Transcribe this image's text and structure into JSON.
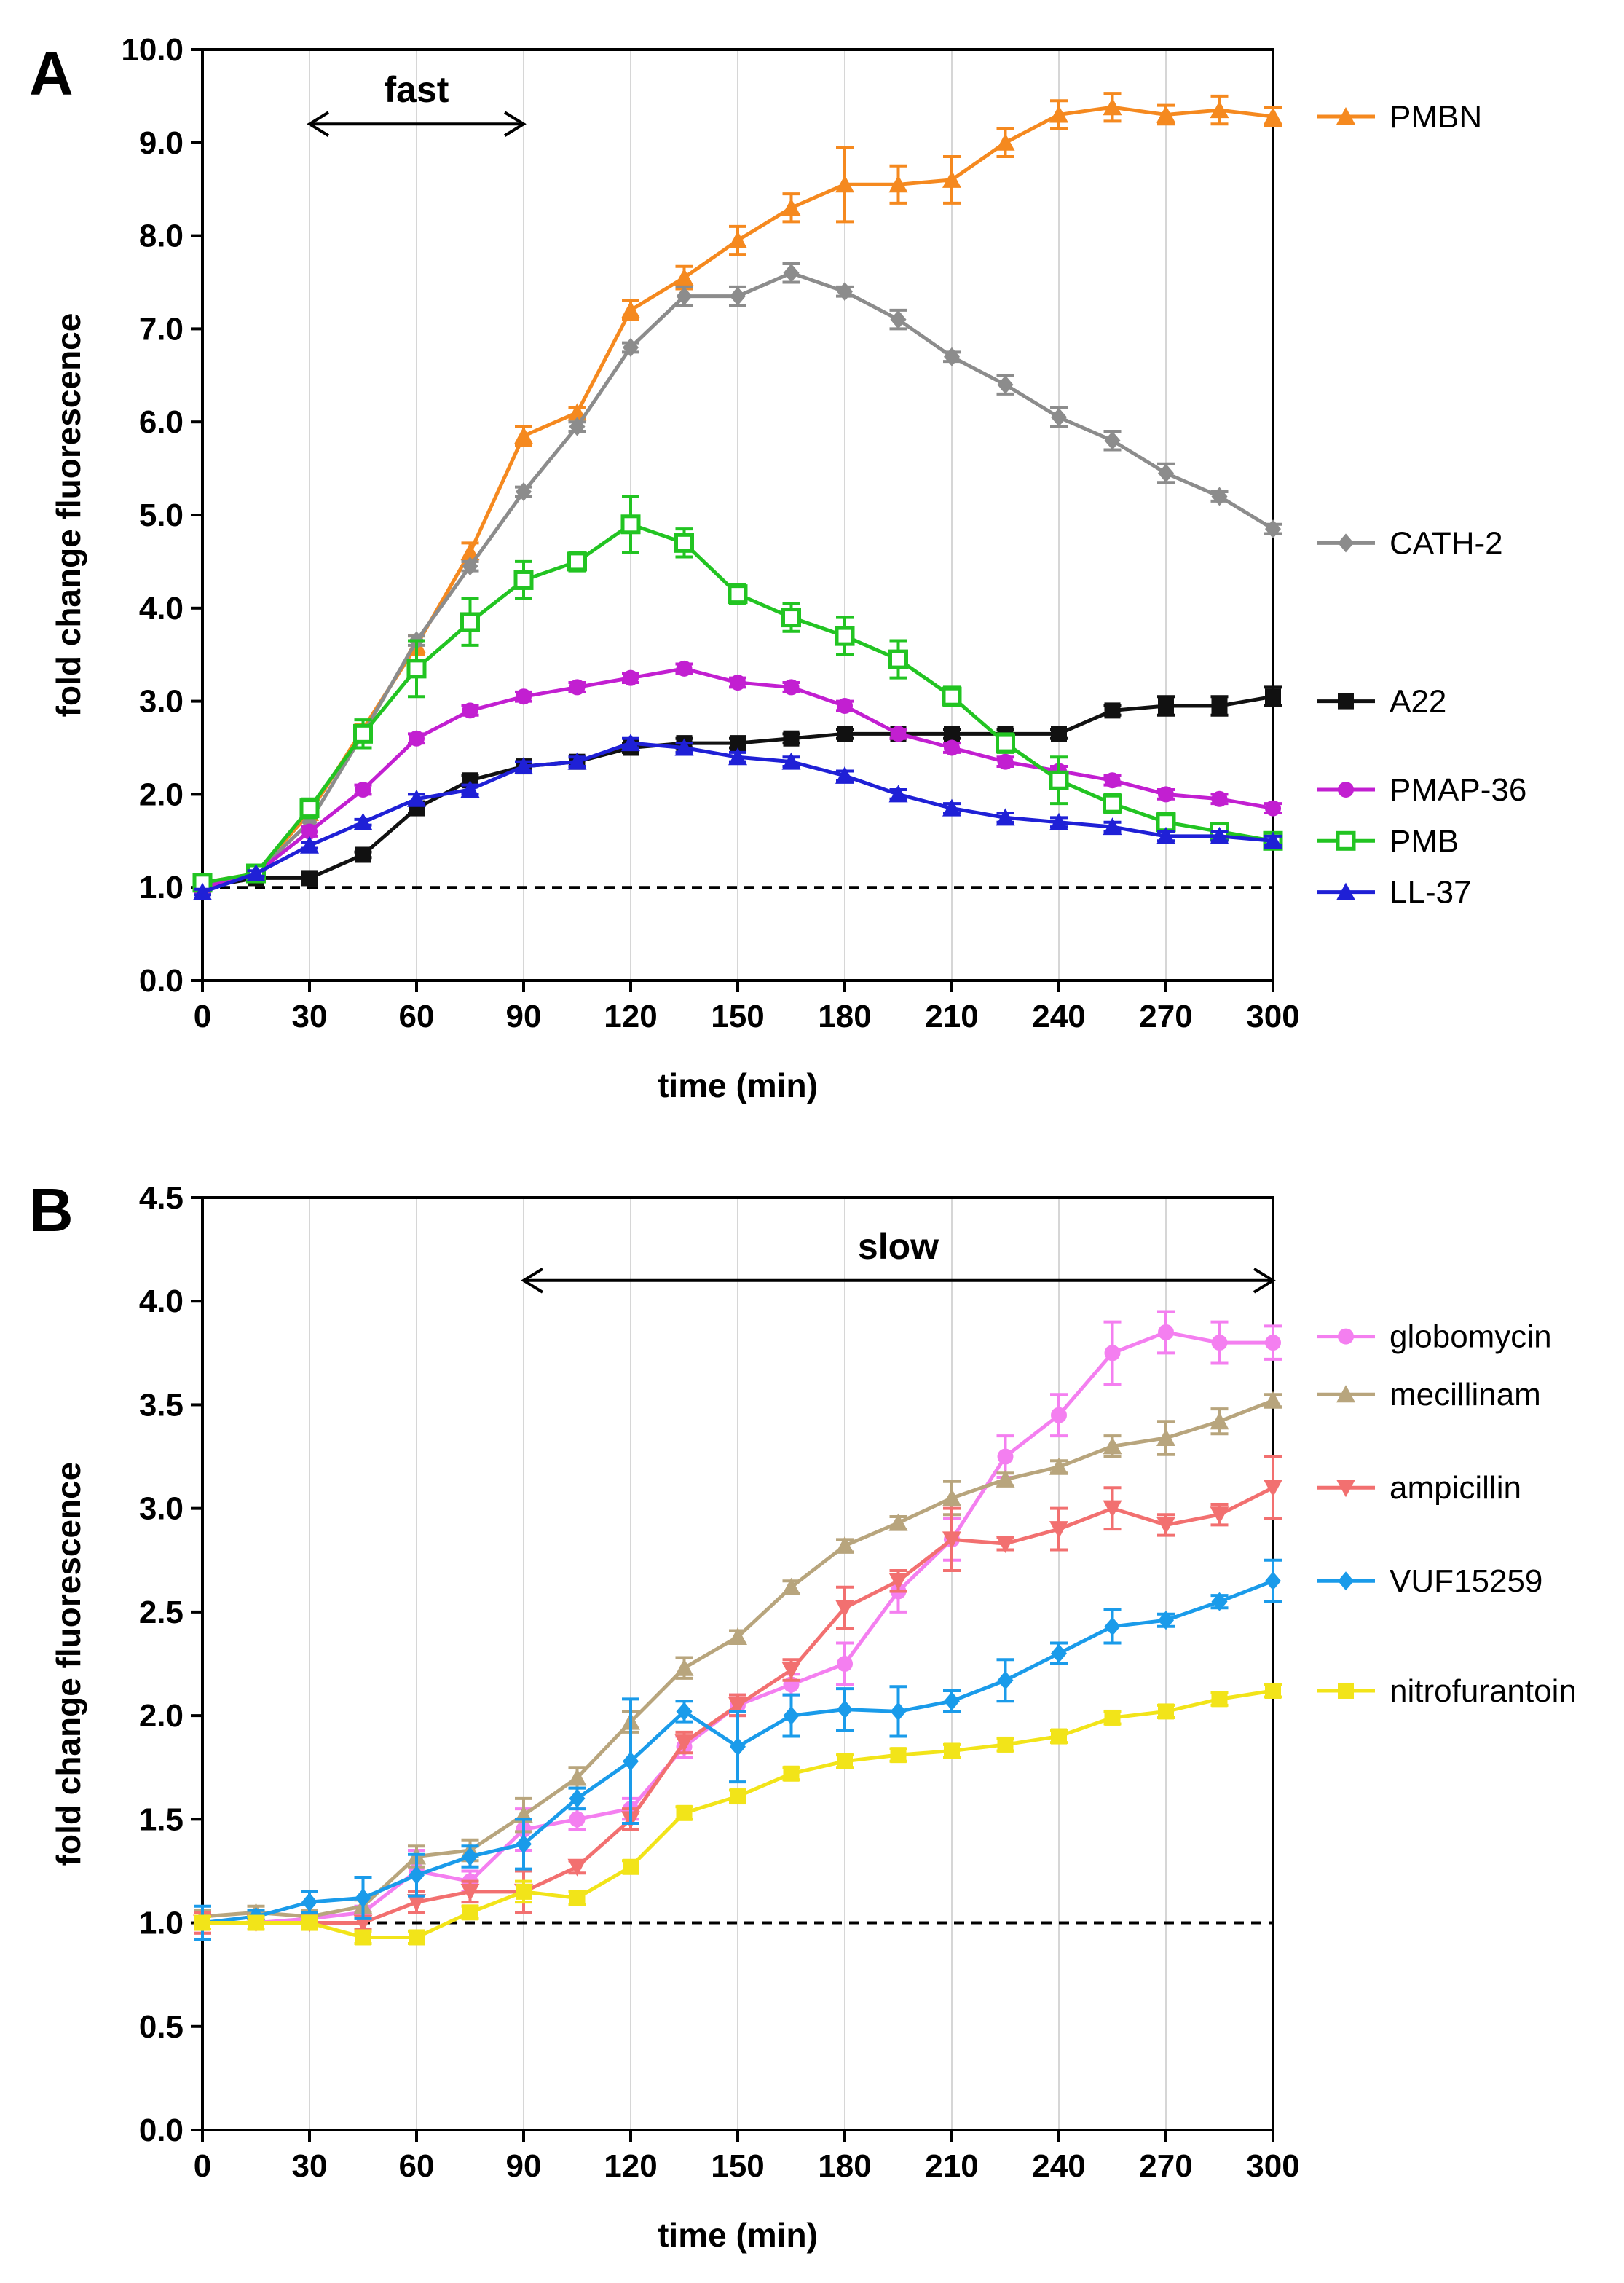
{
  "chart_data": [
    {
      "panel": "A",
      "type": "line",
      "xlabel": "time (min)",
      "ylabel": "fold change fluorescence",
      "xlim": [
        0,
        300
      ],
      "ylim": [
        0,
        10
      ],
      "xticks": [
        "0",
        "30",
        "60",
        "90",
        "120",
        "150",
        "180",
        "210",
        "240",
        "270",
        "300"
      ],
      "yticks": [
        "0.0",
        "1.0",
        "2.0",
        "3.0",
        "4.0",
        "5.0",
        "6.0",
        "7.0",
        "8.0",
        "9.0",
        "10.0"
      ],
      "grid": "vertical",
      "baseline": 1.0,
      "annotation": {
        "text": "fast",
        "from": 30,
        "to": 90,
        "y": 9.2
      },
      "x": [
        0,
        15,
        30,
        45,
        60,
        75,
        90,
        105,
        120,
        135,
        150,
        165,
        180,
        195,
        210,
        225,
        240,
        255,
        270,
        285,
        300
      ],
      "series": [
        {
          "name": "PMBN",
          "color": "#f5891f",
          "marker": "triangle-up",
          "values": [
            1.05,
            1.15,
            1.8,
            2.7,
            3.6,
            4.6,
            5.85,
            6.1,
            7.2,
            7.55,
            7.95,
            8.3,
            8.55,
            8.55,
            8.6,
            9.0,
            9.3,
            9.38,
            9.3,
            9.35,
            9.28
          ],
          "errors": [
            0.05,
            0.05,
            0.05,
            0.05,
            0.1,
            0.1,
            0.1,
            0.05,
            0.1,
            0.12,
            0.15,
            0.15,
            0.4,
            0.2,
            0.25,
            0.15,
            0.15,
            0.15,
            0.1,
            0.15,
            0.1
          ]
        },
        {
          "name": "CATH-2",
          "color": "#8c8c8c",
          "marker": "diamond",
          "values": [
            1.0,
            1.15,
            1.7,
            2.65,
            3.65,
            4.45,
            5.25,
            5.95,
            6.8,
            7.35,
            7.35,
            7.6,
            7.4,
            7.1,
            6.7,
            6.4,
            6.05,
            5.8,
            5.45,
            5.2,
            4.85
          ],
          "errors": [
            0.05,
            0.05,
            0.05,
            0.05,
            0.05,
            0.05,
            0.05,
            0.05,
            0.05,
            0.1,
            0.1,
            0.1,
            0.05,
            0.1,
            0.05,
            0.1,
            0.1,
            0.1,
            0.1,
            0.05,
            0.05
          ],
          "label_y": 4.7
        },
        {
          "name": "A22",
          "color": "#111111",
          "marker": "square",
          "values": [
            1.0,
            1.1,
            1.1,
            1.35,
            1.85,
            2.15,
            2.3,
            2.35,
            2.5,
            2.55,
            2.55,
            2.6,
            2.65,
            2.65,
            2.65,
            2.65,
            2.65,
            2.9,
            2.95,
            2.95,
            3.05
          ],
          "errors": [
            0.05,
            0.03,
            0.03,
            0.03,
            0.05,
            0.05,
            0.05,
            0.05,
            0.05,
            0.05,
            0.05,
            0.05,
            0.05,
            0.05,
            0.05,
            0.05,
            0.05,
            0.05,
            0.1,
            0.1,
            0.1
          ],
          "label_y": 3.0
        },
        {
          "name": "PMAP-36",
          "color": "#c21fd1",
          "marker": "circle",
          "values": [
            1.0,
            1.15,
            1.6,
            2.05,
            2.6,
            2.9,
            3.05,
            3.15,
            3.25,
            3.35,
            3.2,
            3.15,
            2.95,
            2.65,
            2.5,
            2.35,
            2.25,
            2.15,
            2.0,
            1.95,
            1.85
          ],
          "errors": [
            0.05,
            0.03,
            0.05,
            0.05,
            0.05,
            0.05,
            0.05,
            0.05,
            0.05,
            0.05,
            0.05,
            0.05,
            0.05,
            0.05,
            0.05,
            0.05,
            0.05,
            0.05,
            0.05,
            0.05,
            0.05
          ],
          "label_y": 2.05
        },
        {
          "name": "PMB",
          "color": "#22c422",
          "marker": "square-open",
          "values": [
            1.05,
            1.15,
            1.85,
            2.65,
            3.35,
            3.85,
            4.3,
            4.5,
            4.9,
            4.7,
            4.15,
            3.9,
            3.7,
            3.45,
            3.05,
            2.55,
            2.15,
            1.9,
            1.7,
            1.6,
            1.5
          ],
          "errors": [
            0.05,
            0.05,
            0.1,
            0.15,
            0.3,
            0.25,
            0.2,
            0.1,
            0.3,
            0.15,
            0.1,
            0.15,
            0.2,
            0.2,
            0.1,
            0.1,
            0.25,
            0.1,
            0.1,
            0.05,
            0.05
          ],
          "label_y": 1.5
        },
        {
          "name": "LL-37",
          "color": "#1f20d6",
          "marker": "triangle-up",
          "values": [
            0.95,
            1.15,
            1.45,
            1.7,
            1.95,
            2.05,
            2.3,
            2.35,
            2.55,
            2.5,
            2.4,
            2.35,
            2.2,
            2.0,
            1.85,
            1.75,
            1.7,
            1.65,
            1.55,
            1.55,
            1.5
          ],
          "errors": [
            0.03,
            0.03,
            0.03,
            0.03,
            0.05,
            0.05,
            0.05,
            0.05,
            0.05,
            0.05,
            0.05,
            0.05,
            0.05,
            0.05,
            0.05,
            0.05,
            0.05,
            0.05,
            0.05,
            0.05,
            0.05
          ],
          "label_y": 0.95
        }
      ]
    },
    {
      "panel": "B",
      "type": "line",
      "xlabel": "time (min)",
      "ylabel": "fold change fluorescence",
      "xlim": [
        0,
        300
      ],
      "ylim": [
        0,
        4.5
      ],
      "xticks": [
        "0",
        "30",
        "60",
        "90",
        "120",
        "150",
        "180",
        "210",
        "240",
        "270",
        "300"
      ],
      "yticks": [
        "0.0",
        "0.5",
        "1.0",
        "1.5",
        "2.0",
        "2.5",
        "3.0",
        "3.5",
        "4.0",
        "4.5"
      ],
      "grid": "vertical",
      "baseline": 1.0,
      "annotation": {
        "text": "slow",
        "from": 90,
        "to": 300,
        "y": 4.1
      },
      "x": [
        0,
        15,
        30,
        45,
        60,
        75,
        90,
        105,
        120,
        135,
        150,
        165,
        180,
        195,
        210,
        225,
        240,
        255,
        270,
        285,
        300
      ],
      "series": [
        {
          "name": "globomycin",
          "color": "#f47ff0",
          "marker": "circle",
          "values": [
            1.0,
            1.0,
            1.02,
            1.05,
            1.25,
            1.2,
            1.45,
            1.5,
            1.55,
            1.85,
            2.05,
            2.15,
            2.25,
            2.6,
            2.85,
            3.25,
            3.45,
            3.75,
            3.85,
            3.8,
            3.8
          ],
          "errors": [
            0.05,
            0.03,
            0.03,
            0.03,
            0.1,
            0.05,
            0.1,
            0.05,
            0.05,
            0.05,
            0.05,
            0.05,
            0.1,
            0.1,
            0.1,
            0.1,
            0.1,
            0.15,
            0.1,
            0.1,
            0.08
          ],
          "label_y": 3.83
        },
        {
          "name": "mecillinam",
          "color": "#b8a57d",
          "marker": "triangle-up",
          "values": [
            1.03,
            1.05,
            1.03,
            1.08,
            1.32,
            1.35,
            1.52,
            1.7,
            1.97,
            2.23,
            2.38,
            2.62,
            2.82,
            2.93,
            3.05,
            3.14,
            3.2,
            3.3,
            3.34,
            3.42,
            3.52
          ],
          "errors": [
            0.03,
            0.03,
            0.03,
            0.03,
            0.05,
            0.05,
            0.08,
            0.05,
            0.05,
            0.05,
            0.03,
            0.03,
            0.03,
            0.03,
            0.08,
            0.03,
            0.03,
            0.05,
            0.08,
            0.06,
            0.03
          ],
          "label_y": 3.55
        },
        {
          "name": "ampicillin",
          "color": "#f27070",
          "marker": "triangle-down",
          "values": [
            1.0,
            1.0,
            1.0,
            1.0,
            1.1,
            1.15,
            1.15,
            1.27,
            1.5,
            1.87,
            2.05,
            2.22,
            2.52,
            2.65,
            2.85,
            2.83,
            2.9,
            3.0,
            2.92,
            2.97,
            3.1
          ],
          "errors": [
            0.05,
            0.03,
            0.03,
            0.03,
            0.05,
            0.05,
            0.1,
            0.03,
            0.05,
            0.05,
            0.05,
            0.05,
            0.1,
            0.05,
            0.15,
            0.03,
            0.1,
            0.1,
            0.05,
            0.05,
            0.15
          ],
          "label_y": 3.1
        },
        {
          "name": "VUF15259",
          "color": "#1a9bea",
          "marker": "diamond",
          "values": [
            1.0,
            1.03,
            1.1,
            1.12,
            1.23,
            1.32,
            1.38,
            1.6,
            1.78,
            2.02,
            1.85,
            2.0,
            2.03,
            2.02,
            2.07,
            2.17,
            2.3,
            2.43,
            2.46,
            2.55,
            2.65
          ],
          "errors": [
            0.08,
            0.03,
            0.05,
            0.1,
            0.1,
            0.05,
            0.12,
            0.05,
            0.3,
            0.05,
            0.17,
            0.1,
            0.1,
            0.12,
            0.05,
            0.1,
            0.05,
            0.08,
            0.03,
            0.03,
            0.1
          ],
          "label_y": 2.65
        },
        {
          "name": "nitrofurantoin",
          "color": "#f2e419",
          "marker": "square",
          "values": [
            1.0,
            1.0,
            1.0,
            0.93,
            0.93,
            1.05,
            1.15,
            1.12,
            1.27,
            1.53,
            1.61,
            1.72,
            1.78,
            1.81,
            1.83,
            1.86,
            1.9,
            1.99,
            2.02,
            2.08,
            2.12
          ],
          "errors": [
            0.03,
            0.03,
            0.03,
            0.03,
            0.03,
            0.03,
            0.05,
            0.03,
            0.03,
            0.03,
            0.03,
            0.03,
            0.03,
            0.03,
            0.03,
            0.03,
            0.03,
            0.03,
            0.03,
            0.03,
            0.03
          ],
          "label_y": 2.12
        }
      ]
    }
  ]
}
